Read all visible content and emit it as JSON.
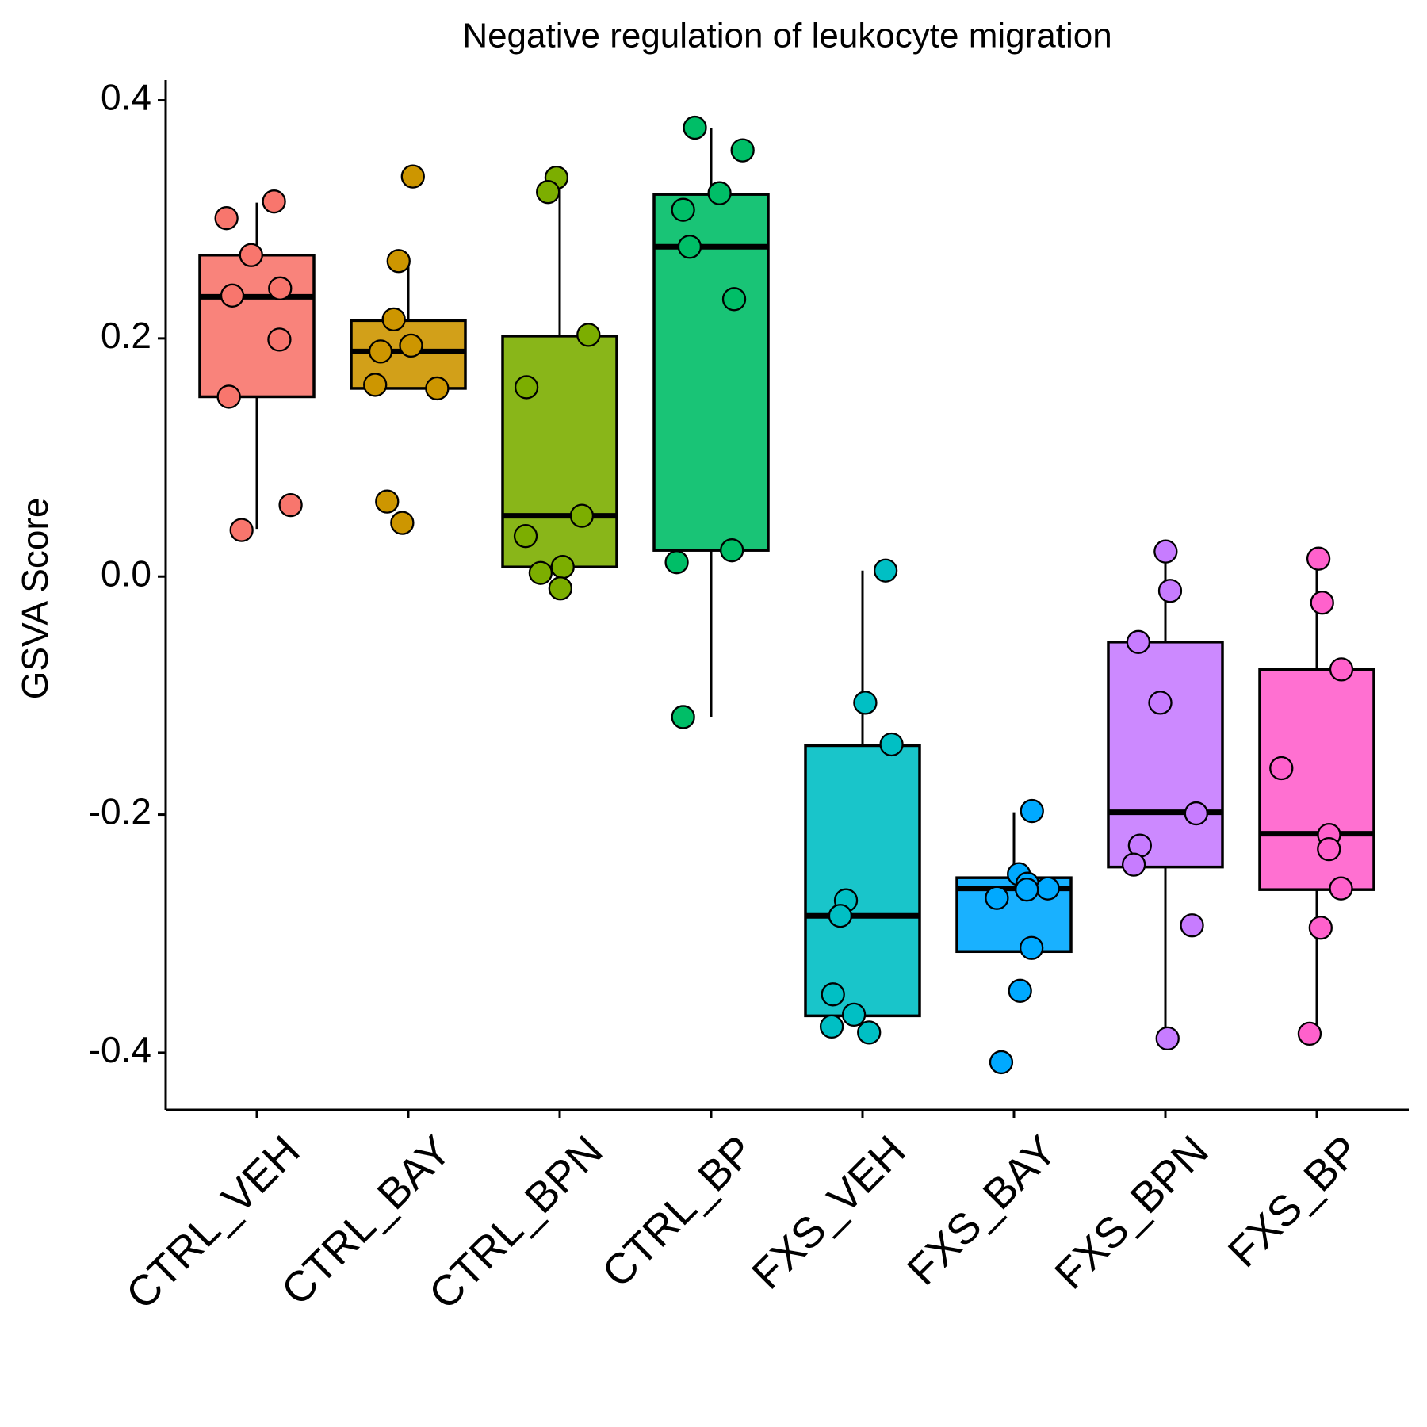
{
  "chart_data": {
    "type": "box",
    "title": "Negative regulation of leukocyte migration",
    "y_label": "GSVA Score",
    "categories": [
      "CTRL_VEH",
      "CTRL_BAY",
      "CTRL_BPN",
      "CTRL_BP",
      "FXS_VEH",
      "FXS_BAY",
      "FXS_BPN",
      "FXS_BP"
    ],
    "ylim": [
      -0.448,
      0.417
    ],
    "yticks": [
      {
        "value": -0.4,
        "label": "-0.4"
      },
      {
        "value": -0.2,
        "label": "-0.2"
      },
      {
        "value": 0,
        "label": "0.0"
      },
      {
        "value": 0.2,
        "label": "0.2"
      },
      {
        "value": 0.4,
        "label": "0.4"
      }
    ],
    "series": [
      {
        "name": "CTRL_VEH",
        "color": "#F8766D",
        "low": 0.04,
        "q1": 0.151,
        "median": 0.235,
        "q3": 0.27,
        "high": 0.314,
        "points": [
          0.315,
          0.301,
          0.27,
          0.242,
          0.236,
          0.199,
          0.151,
          0.06,
          0.039
        ]
      },
      {
        "name": "CTRL_BAY",
        "color": "#CD9600",
        "low": 0.158,
        "q1": 0.158,
        "median": 0.189,
        "q3": 0.215,
        "high": 0.264,
        "points": [
          0.336,
          0.265,
          0.216,
          0.194,
          0.189,
          0.161,
          0.158,
          0.063,
          0.045
        ]
      },
      {
        "name": "CTRL_BPN",
        "color": "#7CAE00",
        "low": -0.008,
        "q1": 0.008,
        "median": 0.051,
        "q3": 0.202,
        "high": 0.335,
        "points": [
          0.335,
          0.323,
          0.203,
          0.159,
          0.051,
          0.034,
          0.008,
          0.003,
          -0.01
        ]
      },
      {
        "name": "CTRL_BP",
        "color": "#00BE67",
        "low": -0.118,
        "q1": 0.022,
        "median": 0.277,
        "q3": 0.321,
        "high": 0.377,
        "points": [
          0.377,
          0.358,
          0.322,
          0.308,
          0.277,
          0.233,
          0.022,
          0.012,
          -0.118
        ]
      },
      {
        "name": "FXS_VEH",
        "color": "#00BFC4",
        "low": -0.383,
        "q1": -0.369,
        "median": -0.285,
        "q3": -0.142,
        "high": 0.005,
        "points": [
          0.005,
          -0.106,
          -0.141,
          -0.272,
          -0.285,
          -0.351,
          -0.368,
          -0.378,
          -0.383
        ]
      },
      {
        "name": "FXS_BAY",
        "color": "#00A9FF",
        "low": -0.315,
        "q1": -0.315,
        "median": -0.262,
        "q3": -0.253,
        "high": -0.198,
        "points": [
          -0.197,
          -0.25,
          -0.258,
          -0.262,
          -0.263,
          -0.27,
          -0.312,
          -0.348,
          -0.408
        ]
      },
      {
        "name": "FXS_BPN",
        "color": "#C77CFF",
        "low": -0.387,
        "q1": -0.244,
        "median": -0.198,
        "q3": -0.055,
        "high": 0.015,
        "points": [
          0.021,
          -0.012,
          -0.055,
          -0.106,
          -0.199,
          -0.226,
          -0.242,
          -0.293,
          -0.388
        ]
      },
      {
        "name": "FXS_BP",
        "color": "#FF61CC",
        "low": -0.383,
        "q1": -0.263,
        "median": -0.216,
        "q3": -0.078,
        "high": 0.015,
        "points": [
          0.015,
          -0.022,
          -0.078,
          -0.161,
          -0.217,
          -0.229,
          -0.262,
          -0.295,
          -0.384
        ]
      }
    ]
  }
}
